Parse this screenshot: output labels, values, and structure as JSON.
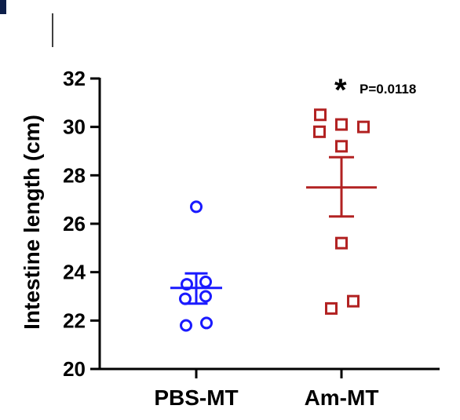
{
  "chart_data": {
    "type": "scatter",
    "ylabel": "Intestine length (cm)",
    "ylim": [
      20,
      32
    ],
    "yticks": [
      "20",
      "22",
      "24",
      "26",
      "28",
      "30",
      "32"
    ],
    "categories": [
      "PBS-MT",
      "Am-MT"
    ],
    "series": [
      {
        "category": "PBS-MT",
        "marker": "circle",
        "color": "#1a1aff",
        "values": [
          26.7,
          23.6,
          23.5,
          23.0,
          22.9,
          21.8,
          21.9
        ],
        "mean": 23.35,
        "sem_low": 22.7,
        "sem_high": 23.95
      },
      {
        "category": "Am-MT",
        "marker": "square",
        "color": "#b22222",
        "values": [
          30.5,
          29.8,
          30.1,
          30.0,
          29.2,
          25.2,
          22.8,
          22.5
        ],
        "mean": 27.5,
        "sem_low": 26.3,
        "sem_high": 28.75
      }
    ],
    "annotation": {
      "star": "*",
      "p_value": "P=0.0118"
    },
    "grid": false
  }
}
